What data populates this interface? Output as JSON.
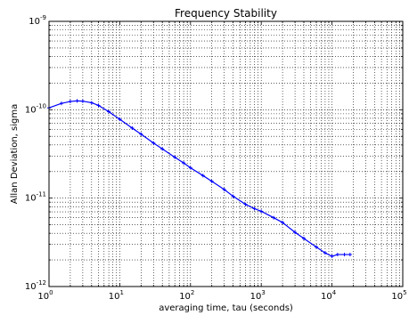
{
  "chart_data": {
    "type": "line",
    "title": "Frequency Stability",
    "xlabel": "averaging time, tau (seconds)",
    "ylabel": "Allan Deviation, sigma",
    "x_scale": "log",
    "y_scale": "log",
    "xlim": [
      1,
      100000
    ],
    "ylim": [
      1e-12,
      1e-09
    ],
    "grid": true,
    "x_ticks": [
      {
        "value": 1,
        "base": "10",
        "exp": "0"
      },
      {
        "value": 10,
        "base": "10",
        "exp": "1"
      },
      {
        "value": 100,
        "base": "10",
        "exp": "2"
      },
      {
        "value": 1000,
        "base": "10",
        "exp": "3"
      },
      {
        "value": 10000,
        "base": "10",
        "exp": "4"
      },
      {
        "value": 100000,
        "base": "10",
        "exp": "5"
      }
    ],
    "y_ticks": [
      {
        "value": 1e-12,
        "base": "10",
        "exp": "-12"
      },
      {
        "value": 1e-11,
        "base": "10",
        "exp": "-11"
      },
      {
        "value": 1e-10,
        "base": "10",
        "exp": "-10"
      },
      {
        "value": 1e-09,
        "base": "10",
        "exp": "-9"
      }
    ],
    "series": [
      {
        "color": "#0000ff",
        "marker": "+",
        "x": [
          1,
          1.5,
          2,
          2.5,
          3,
          4,
          5,
          7,
          10,
          15,
          20,
          30,
          40,
          60,
          80,
          100,
          150,
          200,
          300,
          400,
          600,
          800,
          1000,
          1500,
          2000,
          3000,
          4000,
          6000,
          8000,
          10000,
          12000,
          15000,
          18000
        ],
        "y": [
          1.05e-10,
          1.18e-10,
          1.24e-10,
          1.26e-10,
          1.25e-10,
          1.2e-10,
          1.12e-10,
          9.5e-11,
          7.8e-11,
          6.2e-11,
          5.3e-11,
          4.2e-11,
          3.6e-11,
          2.9e-11,
          2.5e-11,
          2.2e-11,
          1.8e-11,
          1.55e-11,
          1.25e-11,
          1.05e-11,
          8.5e-12,
          7.6e-12,
          7.1e-12,
          6e-12,
          5.3e-12,
          4.1e-12,
          3.5e-12,
          2.8e-12,
          2.4e-12,
          2.2e-12,
          2.3e-12,
          2.3e-12,
          2.3e-12
        ]
      }
    ]
  }
}
